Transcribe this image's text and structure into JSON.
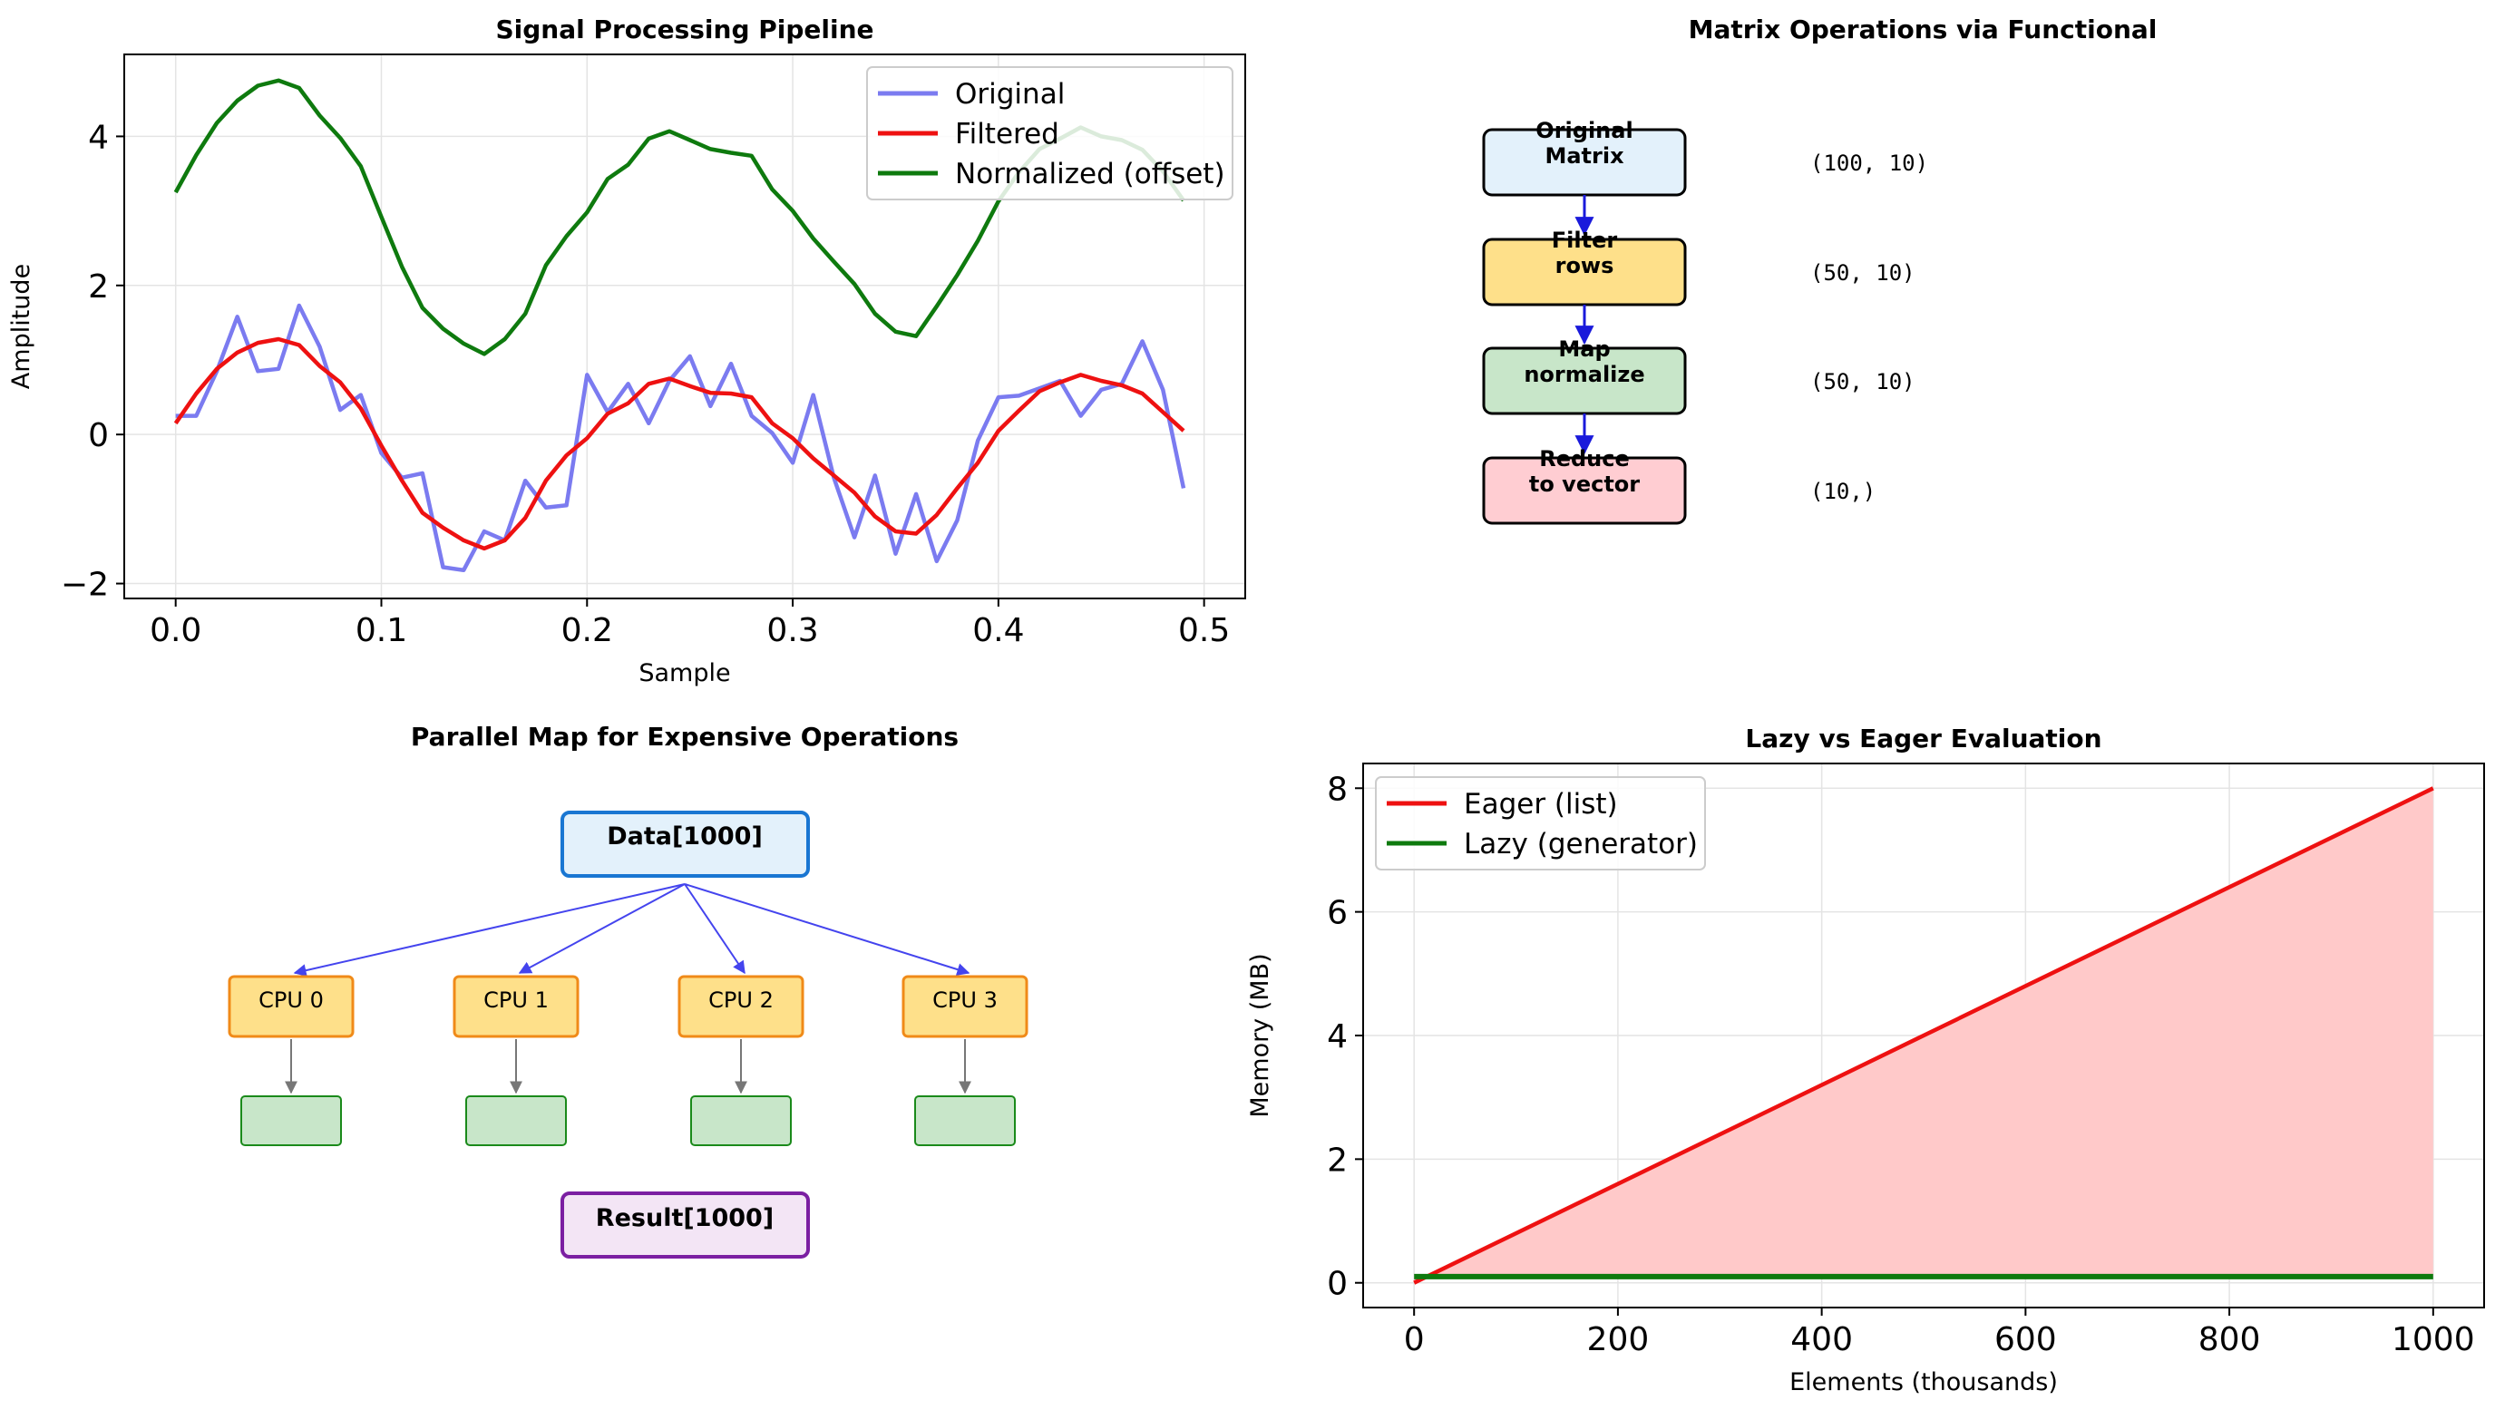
{
  "chart_data": [
    {
      "id": "signal",
      "type": "line",
      "title": "Signal Processing Pipeline",
      "xlabel": "Sample",
      "ylabel": "Amplitude",
      "xlim": [
        -0.025,
        0.52
      ],
      "ylim": [
        -2.2,
        5.1
      ],
      "xticks": [
        0.0,
        0.1,
        0.2,
        0.3,
        0.4,
        0.5
      ],
      "xtick_labels": [
        "0.0",
        "0.1",
        "0.2",
        "0.3",
        "0.4",
        "0.5"
      ],
      "yticks": [
        -2,
        0,
        2,
        4
      ],
      "ytick_labels": [
        "−2",
        "0",
        "2",
        "4"
      ],
      "grid": true,
      "legend": "top-right",
      "x": [
        0.0,
        0.01,
        0.02,
        0.03,
        0.04,
        0.05,
        0.06,
        0.07,
        0.08,
        0.09,
        0.1,
        0.11,
        0.12,
        0.13,
        0.14,
        0.15,
        0.16,
        0.17,
        0.18,
        0.19,
        0.2,
        0.21,
        0.22,
        0.23,
        0.24,
        0.25,
        0.26,
        0.27,
        0.28,
        0.29,
        0.3,
        0.31,
        0.32,
        0.33,
        0.34,
        0.35,
        0.36,
        0.37,
        0.38,
        0.39,
        0.4,
        0.41,
        0.42,
        0.43,
        0.44,
        0.45,
        0.46,
        0.47,
        0.48,
        0.49
      ],
      "series": [
        {
          "name": "Original",
          "color": "#7b7bf0",
          "values": [
            0.25,
            0.25,
            0.85,
            1.58,
            0.85,
            0.88,
            1.73,
            1.18,
            0.33,
            0.53,
            -0.25,
            -0.58,
            -0.52,
            -1.78,
            -1.82,
            -1.3,
            -1.42,
            -0.62,
            -0.98,
            -0.95,
            0.8,
            0.3,
            0.68,
            0.15,
            0.72,
            1.05,
            0.38,
            0.95,
            0.25,
            0.02,
            -0.38,
            0.53,
            -0.58,
            -1.38,
            -0.55,
            -1.6,
            -0.8,
            -1.7,
            -1.15,
            -0.08,
            0.5,
            0.52,
            0.62,
            0.72,
            0.25,
            0.6,
            0.68,
            1.25,
            0.6,
            -0.72
          ]
        },
        {
          "name": "Filtered",
          "color": "#ee1111",
          "values": [
            0.15,
            0.55,
            0.88,
            1.1,
            1.23,
            1.28,
            1.2,
            0.92,
            0.7,
            0.35,
            -0.15,
            -0.62,
            -1.05,
            -1.25,
            -1.42,
            -1.53,
            -1.42,
            -1.12,
            -0.62,
            -0.28,
            -0.05,
            0.28,
            0.42,
            0.68,
            0.75,
            0.65,
            0.56,
            0.55,
            0.5,
            0.15,
            -0.05,
            -0.32,
            -0.55,
            -0.78,
            -1.1,
            -1.3,
            -1.33,
            -1.08,
            -0.72,
            -0.38,
            0.05,
            0.32,
            0.58,
            0.7,
            0.8,
            0.72,
            0.66,
            0.55,
            0.3,
            0.05
          ]
        },
        {
          "name": "Normalized (offset)",
          "color": "#0e7a0e",
          "values": [
            3.25,
            3.75,
            4.18,
            4.48,
            4.68,
            4.75,
            4.65,
            4.28,
            3.98,
            3.6,
            2.92,
            2.25,
            1.7,
            1.42,
            1.22,
            1.08,
            1.28,
            1.62,
            2.27,
            2.66,
            2.98,
            3.43,
            3.62,
            3.97,
            4.07,
            3.95,
            3.83,
            3.78,
            3.74,
            3.29,
            3.0,
            2.63,
            2.32,
            2.02,
            1.62,
            1.38,
            1.32,
            1.72,
            2.14,
            2.6,
            3.13,
            3.52,
            3.83,
            3.97,
            4.12,
            4.0,
            3.95,
            3.82,
            3.53,
            3.14
          ]
        }
      ]
    },
    {
      "id": "memory",
      "type": "area",
      "title": "Lazy vs Eager Evaluation",
      "xlabel": "Elements (thousands)",
      "ylabel": "Memory (MB)",
      "xlim": [
        -50,
        1050
      ],
      "ylim": [
        -0.4,
        8.4
      ],
      "xticks": [
        0,
        200,
        400,
        600,
        800,
        1000
      ],
      "xtick_labels": [
        "0",
        "200",
        "400",
        "600",
        "800",
        "1000"
      ],
      "yticks": [
        0,
        2,
        4,
        6,
        8
      ],
      "ytick_labels": [
        "0",
        "2",
        "4",
        "6",
        "8"
      ],
      "grid": true,
      "legend": "top-left",
      "x": [
        0,
        1000
      ],
      "fill_color": "#ffc9c9",
      "series": [
        {
          "name": "Eager (list)",
          "color": "#ee1111",
          "values": [
            0,
            8
          ]
        },
        {
          "name": "Lazy (generator)",
          "color": "#0e7a0e",
          "values": [
            0.1,
            0.1
          ]
        }
      ]
    }
  ],
  "diagram_matrix": {
    "title": "Matrix Operations via Functional",
    "steps": [
      {
        "label": "Original\nMatrix",
        "shape": "(100, 10)",
        "fill": "#e3f1fb"
      },
      {
        "label": "Filter\nrows",
        "shape": "(50, 10)",
        "fill": "#fee08a"
      },
      {
        "label": "Map\nnormalize",
        "shape": "(50, 10)",
        "fill": "#c8e6c9"
      },
      {
        "label": "Reduce\nto vector",
        "shape": "(10,)",
        "fill": "#ffcdd2"
      }
    ]
  },
  "diagram_parallel": {
    "title": "Parallel Map for Expensive Operations",
    "source": "Data[1000]",
    "workers": [
      "CPU 0",
      "CPU 1",
      "CPU 2",
      "CPU 3"
    ],
    "result": "Result[1000]"
  }
}
